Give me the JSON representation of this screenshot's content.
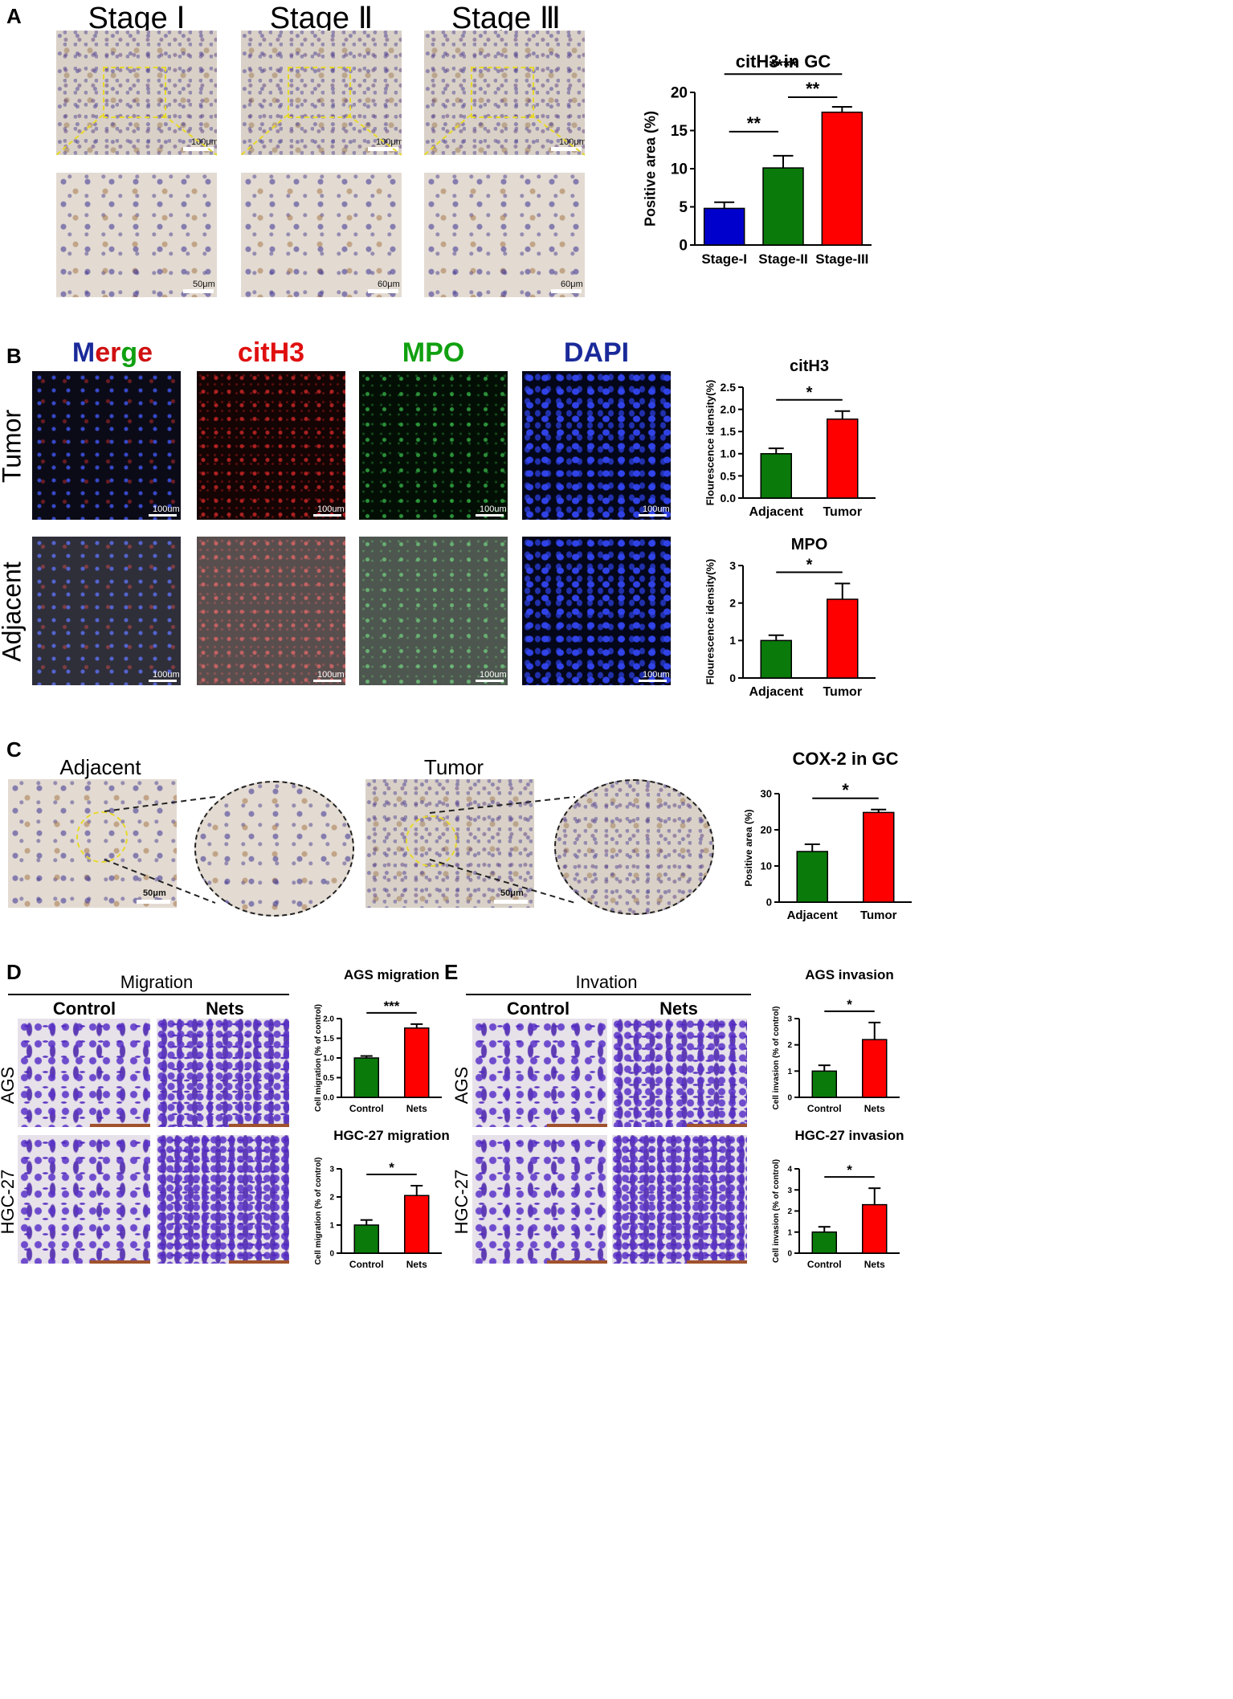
{
  "panels": {
    "A": {
      "label": "A",
      "stage_headers": [
        "Stage Ⅰ",
        "Stage Ⅱ",
        "Stage Ⅲ"
      ],
      "scalebars_top": [
        "100μm",
        "100μm",
        "100μm"
      ],
      "scalebars_bottom": [
        "50μm",
        "60μm",
        "60μm"
      ]
    },
    "B": {
      "label": "B",
      "channel_headers": {
        "merge": [
          "M",
          "e",
          "r",
          "g",
          "e"
        ],
        "cith3": "citH3",
        "mpo": "MPO",
        "dapi": "DAPI"
      },
      "row_labels": [
        "Tumor",
        "Adjacent"
      ],
      "scalebar": "100um"
    },
    "C": {
      "label": "C",
      "headers": [
        "Adjacent",
        "Tumor"
      ],
      "scalebar": "50μm"
    },
    "D": {
      "label": "D",
      "title": "Migration",
      "columns": [
        "Control",
        "Nets"
      ],
      "rows": [
        "AGS",
        "HGC-27"
      ]
    },
    "E": {
      "label": "E",
      "title": "Invation",
      "columns": [
        "Control",
        "Nets"
      ],
      "rows": [
        "AGS",
        "HGC-27"
      ]
    }
  },
  "colors": {
    "blue": "#0000cc",
    "green": "#0a7a0a",
    "red": "#ff0000",
    "merge_m": "#1a2a9a",
    "merge_e": "#d01010",
    "merge_r": "#10a010"
  },
  "chart_data": [
    {
      "id": "A",
      "type": "bar",
      "title": "citH3 in GC",
      "categories": [
        "Stage-I",
        "Stage-II",
        "Stage-III"
      ],
      "values": [
        4.8,
        10.1,
        17.4
      ],
      "errors": [
        0.8,
        1.6,
        0.7
      ],
      "colors": [
        "#0000cc",
        "#0a7a0a",
        "#ff0000"
      ],
      "ylabel": "Positive area (%)",
      "ylim": [
        0,
        20
      ],
      "yticks": [
        "0",
        "5",
        "10",
        "15",
        "20"
      ],
      "significance": [
        {
          "from": 0,
          "to": 1,
          "label": "**"
        },
        {
          "from": 1,
          "to": 2,
          "label": "**"
        },
        {
          "from": 0,
          "to": 2,
          "label": "****"
        }
      ]
    },
    {
      "id": "B1",
      "type": "bar",
      "title": "citH3",
      "categories": [
        "Adjacent",
        "Tumor"
      ],
      "values": [
        1.0,
        1.78
      ],
      "errors": [
        0.12,
        0.18
      ],
      "colors": [
        "#0a7a0a",
        "#ff0000"
      ],
      "ylabel": "Flourescence idensity(%)",
      "ylim": [
        0,
        2.5
      ],
      "yticks": [
        "0.0",
        "0.5",
        "1.0",
        "1.5",
        "2.0",
        "2.5"
      ],
      "significance": [
        {
          "from": 0,
          "to": 1,
          "label": "*"
        }
      ]
    },
    {
      "id": "B2",
      "type": "bar",
      "title": "MPO",
      "categories": [
        "Adjacent",
        "Tumor"
      ],
      "values": [
        1.0,
        2.1
      ],
      "errors": [
        0.14,
        0.42
      ],
      "colors": [
        "#0a7a0a",
        "#ff0000"
      ],
      "ylabel": "Flourescence idensity(%)",
      "ylim": [
        0,
        3
      ],
      "yticks": [
        "0",
        "1",
        "2",
        "3"
      ],
      "significance": [
        {
          "from": 0,
          "to": 1,
          "label": "*"
        }
      ]
    },
    {
      "id": "C",
      "type": "bar",
      "title": "COX-2 in GC",
      "categories": [
        "Adjacent",
        "Tumor"
      ],
      "values": [
        14.0,
        24.8
      ],
      "errors": [
        2.0,
        0.8
      ],
      "colors": [
        "#0a7a0a",
        "#ff0000"
      ],
      "ylabel": "Positive area (%)",
      "ylim": [
        0,
        30
      ],
      "yticks": [
        "0",
        "10",
        "20",
        "30"
      ],
      "significance": [
        {
          "from": 0,
          "to": 1,
          "label": "*"
        }
      ]
    },
    {
      "id": "D1",
      "type": "bar",
      "title": "AGS migration",
      "categories": [
        "Control",
        "Nets"
      ],
      "values": [
        1.0,
        1.76
      ],
      "errors": [
        0.05,
        0.1
      ],
      "colors": [
        "#0a7a0a",
        "#ff0000"
      ],
      "ylabel": "Cell migration (% of control)",
      "ylim": [
        0,
        2.0
      ],
      "yticks": [
        "0.0",
        "0.5",
        "1.0",
        "1.5",
        "2.0"
      ],
      "significance": [
        {
          "from": 0,
          "to": 1,
          "label": "***"
        }
      ]
    },
    {
      "id": "D2",
      "type": "bar",
      "title": "HGC-27 migration",
      "categories": [
        "Control",
        "Nets"
      ],
      "values": [
        1.0,
        2.05
      ],
      "errors": [
        0.18,
        0.35
      ],
      "colors": [
        "#0a7a0a",
        "#ff0000"
      ],
      "ylabel": "Cell migration (% of control)",
      "ylim": [
        0,
        3
      ],
      "yticks": [
        "0",
        "1",
        "2",
        "3"
      ],
      "significance": [
        {
          "from": 0,
          "to": 1,
          "label": "*"
        }
      ]
    },
    {
      "id": "E1",
      "type": "bar",
      "title": "AGS invasion",
      "categories": [
        "Control",
        "Nets"
      ],
      "values": [
        1.0,
        2.2
      ],
      "errors": [
        0.22,
        0.65
      ],
      "colors": [
        "#0a7a0a",
        "#ff0000"
      ],
      "ylabel": "Cell invasion (% of control)",
      "ylim": [
        0,
        3
      ],
      "yticks": [
        "0",
        "1",
        "2",
        "3"
      ],
      "significance": [
        {
          "from": 0,
          "to": 1,
          "label": "*"
        }
      ]
    },
    {
      "id": "E2",
      "type": "bar",
      "title": "HGC-27 invasion",
      "categories": [
        "Control",
        "Nets"
      ],
      "values": [
        1.0,
        2.3
      ],
      "errors": [
        0.25,
        0.78
      ],
      "colors": [
        "#0a7a0a",
        "#ff0000"
      ],
      "ylabel": "Cell invasion (% of control)",
      "ylim": [
        0,
        4
      ],
      "yticks": [
        "0",
        "1",
        "2",
        "3",
        "4"
      ],
      "significance": [
        {
          "from": 0,
          "to": 1,
          "label": "*"
        }
      ]
    }
  ]
}
